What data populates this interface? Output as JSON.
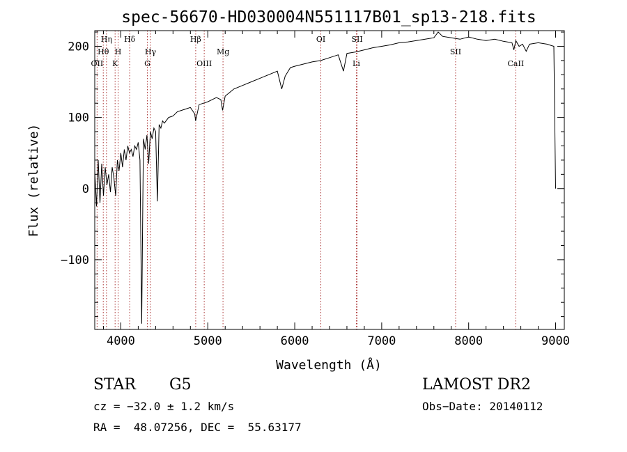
{
  "chart_data": {
    "type": "line",
    "title": "spec-56670-HD030004N551117B01_sp13-218.fits",
    "xlabel": "Wavelength (Å)",
    "ylabel": "Flux (relative)",
    "xlim": [
      3700,
      9100
    ],
    "ylim": [
      -198,
      222
    ],
    "xticks": [
      4000,
      5000,
      6000,
      7000,
      8000,
      9000
    ],
    "yticks": [
      -100,
      0,
      100,
      200
    ],
    "grid": false,
    "series": [
      {
        "x": [
          3700,
          3720,
          3740,
          3760,
          3780,
          3800,
          3820,
          3840,
          3860,
          3880,
          3900,
          3920,
          3940,
          3960,
          3980,
          4000,
          4020,
          4040,
          4060,
          4080,
          4100,
          4120,
          4140,
          4160,
          4180,
          4200,
          4220,
          4240,
          4250,
          4260,
          4280,
          4300,
          4320,
          4340,
          4360,
          4380,
          4400,
          4420,
          4440,
          4460,
          4480,
          4500,
          4550,
          4600,
          4650,
          4700,
          4750,
          4800,
          4850,
          4860,
          4900,
          4950,
          5000,
          5050,
          5100,
          5150,
          5170,
          5200,
          5250,
          5300,
          5400,
          5500,
          5600,
          5700,
          5800,
          5850,
          5890,
          5950,
          6000,
          6100,
          6200,
          6300,
          6400,
          6500,
          6560,
          6600,
          6700,
          6800,
          6900,
          7000,
          7100,
          7200,
          7300,
          7400,
          7500,
          7600,
          7650,
          7700,
          7800,
          7900,
          8000,
          8100,
          8200,
          8300,
          8400,
          8498,
          8520,
          8542,
          8580,
          8620,
          8662,
          8700,
          8800,
          8900,
          8980,
          9000
        ],
        "y": [
          25,
          -25,
          40,
          -20,
          35,
          -10,
          30,
          5,
          20,
          -5,
          30,
          15,
          -10,
          40,
          25,
          50,
          30,
          55,
          40,
          60,
          50,
          55,
          45,
          60,
          55,
          65,
          40,
          -190,
          -60,
          70,
          55,
          75,
          35,
          80,
          70,
          85,
          80,
          -18,
          90,
          85,
          95,
          92,
          100,
          102,
          108,
          110,
          112,
          114,
          105,
          95,
          118,
          120,
          122,
          125,
          128,
          125,
          110,
          130,
          135,
          140,
          145,
          150,
          155,
          160,
          165,
          140,
          158,
          170,
          172,
          175,
          178,
          180,
          184,
          188,
          165,
          190,
          192,
          195,
          198,
          200,
          202,
          205,
          206,
          208,
          210,
          212,
          220,
          214,
          212,
          210,
          213,
          210,
          208,
          210,
          207,
          205,
          195,
          208,
          200,
          203,
          193,
          203,
          205,
          203,
          200,
          0
        ]
      }
    ],
    "lines": [
      {
        "label": "Hη",
        "x": 3835,
        "row": 0
      },
      {
        "label": "Hθ",
        "x": 3798,
        "row": 1
      },
      {
        "label": "OII",
        "x": 3727,
        "row": 2
      },
      {
        "label": "Hδ",
        "x": 4102,
        "row": 0
      },
      {
        "label": "H",
        "x": 3969,
        "row": 1
      },
      {
        "label": "K",
        "x": 3934,
        "row": 2
      },
      {
        "label": "Hγ",
        "x": 4341,
        "row": 1
      },
      {
        "label": "G",
        "x": 4305,
        "row": 2
      },
      {
        "label": "Hβ",
        "x": 4861,
        "row": 0
      },
      {
        "label": "Mg",
        "x": 5175,
        "row": 1
      },
      {
        "label": "OIII",
        "x": 4959,
        "row": 2
      },
      {
        "label": "OI",
        "x": 6300,
        "row": 0
      },
      {
        "label": "SII",
        "x": 6717,
        "row": 0
      },
      {
        "label": "Li",
        "x": 6708,
        "row": 2
      },
      {
        "label": "SII",
        "x": 7850,
        "row": 1
      },
      {
        "label": "CaII",
        "x": 8542,
        "row": 2
      }
    ]
  },
  "info": {
    "class": "STAR",
    "subclass": "G5",
    "survey": "LAMOST DR2",
    "cz": "cz = −32.0 ± 1.2 km/s",
    "obs_date": "Obs−Date: 20140112",
    "coords": "RA =  48.07256, DEC =  55.63177"
  }
}
